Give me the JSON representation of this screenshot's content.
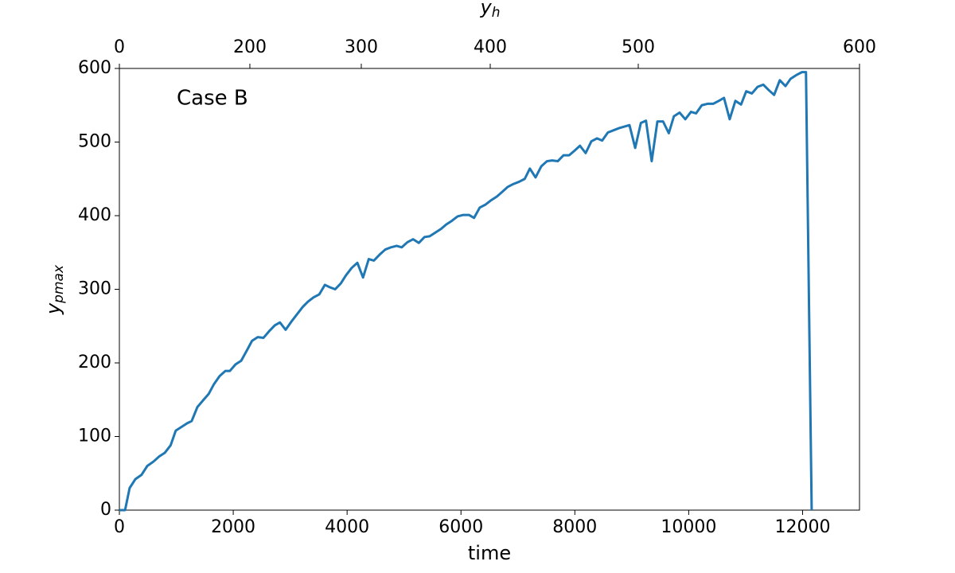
{
  "chart_data": {
    "type": "line",
    "annotation": "Case B",
    "xlabel": "time",
    "ylabel": "y",
    "ylabel_subscript": "pmax",
    "x2label": "y",
    "x2label_subscript": "h",
    "x": [
      0,
      100,
      180,
      280,
      390,
      490,
      600,
      700,
      800,
      900,
      990,
      1090,
      1190,
      1270,
      1370,
      1480,
      1570,
      1660,
      1760,
      1860,
      1940,
      2040,
      2140,
      2240,
      2330,
      2430,
      2530,
      2630,
      2730,
      2820,
      2920,
      3020,
      3120,
      3220,
      3310,
      3410,
      3510,
      3610,
      3690,
      3790,
      3890,
      3980,
      4080,
      4180,
      4280,
      4380,
      4470,
      4570,
      4670,
      4770,
      4870,
      4960,
      5060,
      5160,
      5260,
      5360,
      5450,
      5550,
      5650,
      5740,
      5840,
      5940,
      6040,
      6140,
      6230,
      6330,
      6430,
      6530,
      6630,
      6720,
      6820,
      6920,
      7020,
      7120,
      7210,
      7310,
      7410,
      7510,
      7600,
      7700,
      7800,
      7900,
      7990,
      8090,
      8190,
      8290,
      8390,
      8480,
      8580,
      8680,
      8780,
      8870,
      8960,
      9060,
      9160,
      9250,
      9350,
      9450,
      9550,
      9650,
      9740,
      9840,
      9940,
      10040,
      10130,
      10230,
      10330,
      10430,
      10530,
      10620,
      10720,
      10820,
      10920,
      11010,
      11110,
      11210,
      11310,
      11400,
      11500,
      11600,
      11700,
      11790,
      11890,
      11990,
      12060,
      12160
    ],
    "series": [
      {
        "name": "y_pmax",
        "color": "#1f77b4",
        "values": [
          0,
          0,
          30,
          42,
          48,
          60,
          66,
          73,
          78,
          88,
          108,
          113,
          118,
          121,
          140,
          150,
          158,
          171,
          182,
          189,
          189,
          198,
          203,
          217,
          230,
          235,
          234,
          243,
          251,
          255,
          245,
          256,
          266,
          276,
          283,
          289,
          293,
          306,
          303,
          300,
          308,
          319,
          329,
          336,
          316,
          341,
          339,
          347,
          354,
          357,
          359,
          357,
          364,
          368,
          363,
          371,
          372,
          377,
          382,
          388,
          393,
          399,
          401,
          401,
          397,
          411,
          415,
          421,
          426,
          432,
          439,
          443,
          446,
          450,
          464,
          452,
          467,
          474,
          475,
          474,
          482,
          482,
          488,
          495,
          485,
          501,
          505,
          502,
          513,
          516,
          519,
          521,
          523,
          492,
          526,
          529,
          474,
          528,
          528,
          512,
          535,
          540,
          531,
          541,
          539,
          550,
          552,
          552,
          556,
          560,
          531,
          556,
          551,
          569,
          566,
          575,
          578,
          571,
          564,
          584,
          576,
          586,
          591,
          595,
          595,
          0
        ]
      }
    ],
    "xlim": [
      0,
      13000
    ],
    "xticks": [
      0,
      2000,
      4000,
      6000,
      8000,
      10000,
      12000
    ],
    "ylim": [
      0,
      600
    ],
    "yticks": [
      0,
      100,
      200,
      300,
      400,
      500,
      600
    ],
    "x2ticks": [
      {
        "value": 0,
        "label": "0"
      },
      {
        "value": 2292,
        "label": "200"
      },
      {
        "value": 4249,
        "label": "300"
      },
      {
        "value": 6514,
        "label": "400"
      },
      {
        "value": 9114,
        "label": "500"
      },
      {
        "value": 13000,
        "label": "600"
      }
    ],
    "grid": false
  }
}
